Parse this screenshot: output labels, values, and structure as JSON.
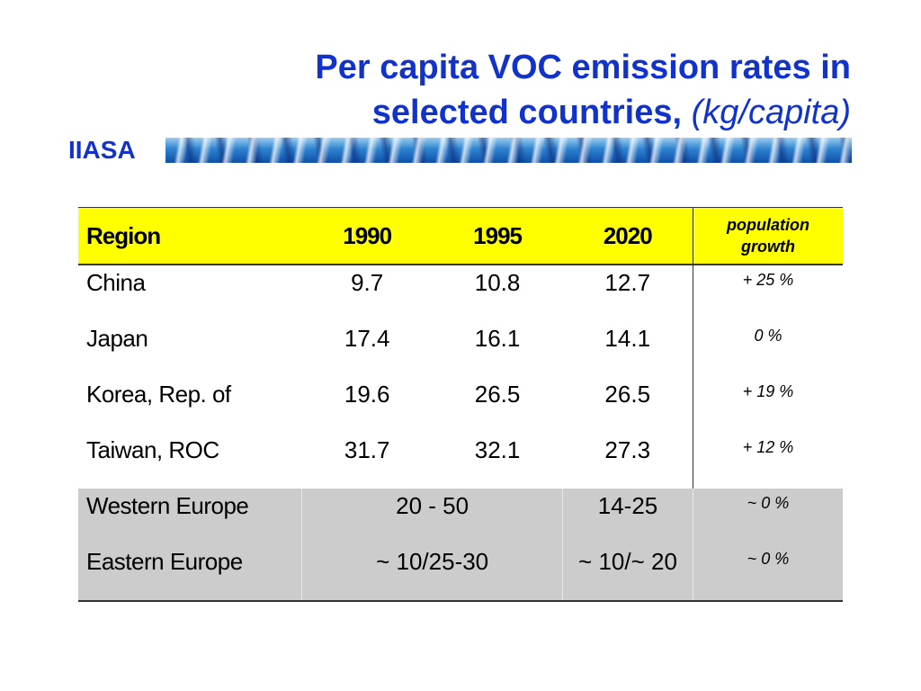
{
  "header": {
    "title_line1": "Per capita VOC emission rates in",
    "title_line2": "selected countries,",
    "title_unit": "(kg/capita)",
    "org": "IIASA"
  },
  "table": {
    "columns": [
      "Region",
      "1990",
      "1995",
      "2020",
      "population",
      "growth"
    ],
    "rows": [
      {
        "region": "China",
        "y1990": "9.7",
        "y1995": "10.8",
        "y2020": "12.7",
        "growth": "+  25 %"
      },
      {
        "region": "Japan",
        "y1990": "17.4",
        "y1995": "16.1",
        "y2020": "14.1",
        "growth": "0 %"
      },
      {
        "region": "Korea, Rep. of",
        "y1990": "19.6",
        "y1995": "26.5",
        "y2020": "26.5",
        "growth": "+  19 %"
      },
      {
        "region": "Taiwan, ROC",
        "y1990": "31.7",
        "y1995": "32.1",
        "y2020": "27.3",
        "growth": "+  12 %"
      }
    ],
    "grey_rows": [
      {
        "region": "Western Europe",
        "span_1990_1995": "20 - 50",
        "y2020": "14-25",
        "growth": "~  0 %"
      },
      {
        "region": "Eastern Europe",
        "span_1990_1995": "~   10/25-30",
        "y2020": "~  10/~  20",
        "growth": "~  0 %"
      }
    ]
  },
  "colors": {
    "title": "#1133cc",
    "header_fill": "#ffff00",
    "grey_rows_fill": "#cccccc"
  }
}
